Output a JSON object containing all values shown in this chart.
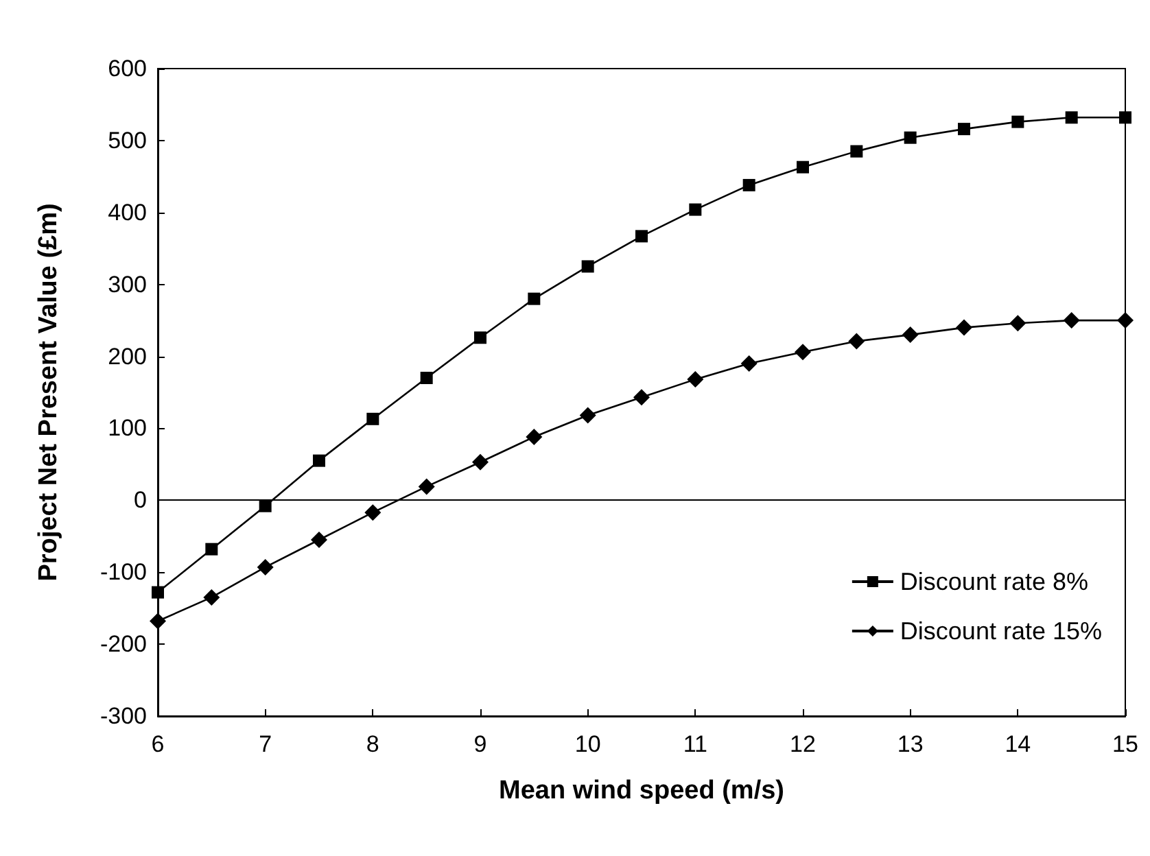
{
  "chart_data": {
    "type": "line",
    "xlabel": "Mean wind speed (m/s)",
    "ylabel": "Project Net Present Value (£m)",
    "x": [
      6,
      6.5,
      7,
      7.5,
      8,
      8.5,
      9,
      9.5,
      10,
      10.5,
      11,
      11.5,
      12,
      12.5,
      13,
      13.5,
      14,
      14.5,
      15
    ],
    "series": [
      {
        "name": "Discount rate 8%",
        "color": "#000000",
        "marker": "square",
        "values": [
          -128,
          -68,
          -8,
          55,
          113,
          170,
          226,
          280,
          325,
          367,
          404,
          438,
          463,
          485,
          504,
          516,
          526,
          532,
          532
        ]
      },
      {
        "name": "Discount rate 15%",
        "color": "#000000",
        "marker": "diamond",
        "values": [
          -168,
          -135,
          -93,
          -55,
          -17,
          19,
          53,
          88,
          118,
          143,
          168,
          190,
          206,
          221,
          230,
          240,
          246,
          250,
          250
        ]
      }
    ],
    "xlim": [
      6,
      15
    ],
    "xticks": [
      6,
      7,
      8,
      9,
      10,
      11,
      12,
      13,
      14,
      15
    ],
    "ylim": [
      -300,
      600
    ],
    "yticks": [
      -300,
      -200,
      -100,
      0,
      100,
      200,
      300,
      400,
      500,
      600
    ],
    "ref_lines": [
      {
        "axis": "y",
        "value": 0,
        "color": "#000000",
        "line_style": "solid"
      }
    ],
    "grid": false,
    "legend": "bottom right",
    "line_style": "solid"
  }
}
